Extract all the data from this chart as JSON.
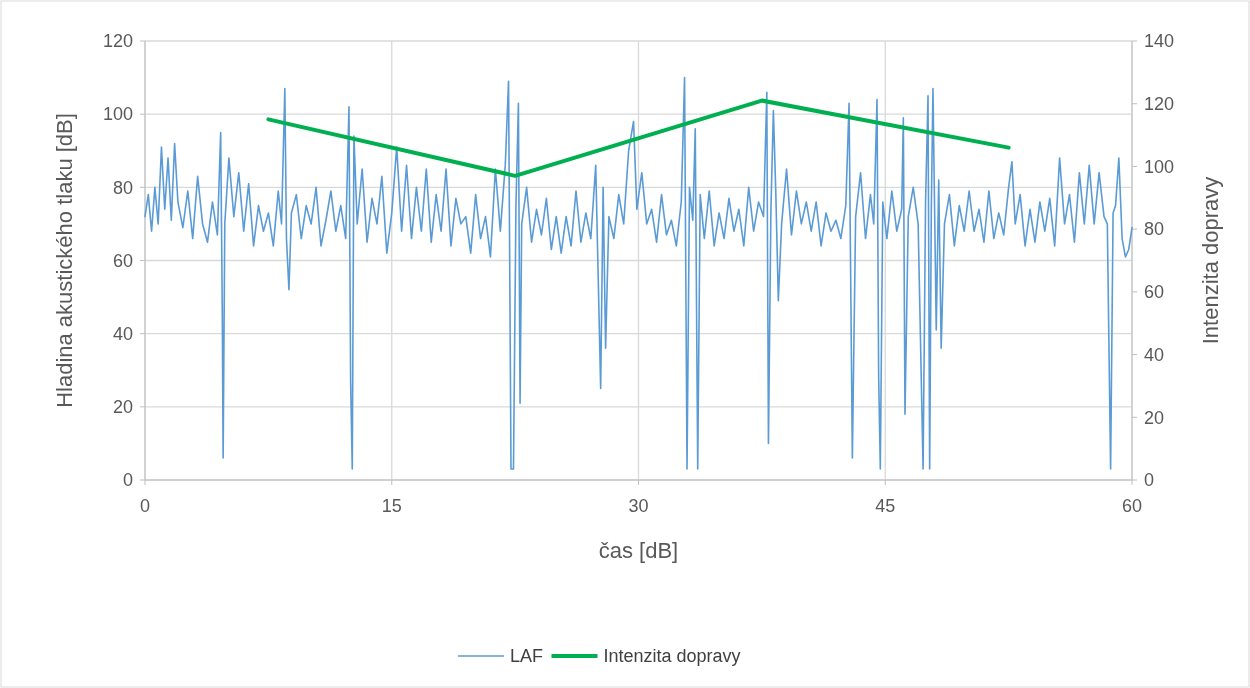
{
  "chart_data": {
    "type": "line",
    "xlabel": "čas [dB]",
    "ylabel": "Hladina akustického tlaku [dB]",
    "y2label": "Intenzita dopravy",
    "xlim": [
      0,
      60
    ],
    "xticks": [
      0,
      15,
      30,
      45,
      60
    ],
    "ylim": [
      0,
      120
    ],
    "yticks": [
      0,
      20,
      40,
      60,
      80,
      100,
      120
    ],
    "y2lim": [
      0,
      140
    ],
    "y2ticks": [
      0,
      20,
      40,
      60,
      80,
      100,
      120,
      140
    ],
    "grid": true,
    "legend": "bottom",
    "series": [
      {
        "name": "LAF",
        "color": "#5b9bd5",
        "x": [
          0,
          0.2,
          0.4,
          0.6,
          0.8,
          1.0,
          1.2,
          1.4,
          1.6,
          1.8,
          2.0,
          2.3,
          2.6,
          2.9,
          3.2,
          3.5,
          3.8,
          4.1,
          4.4,
          4.6,
          4.7,
          4.75,
          4.85,
          5.1,
          5.4,
          5.7,
          6.0,
          6.3,
          6.6,
          6.9,
          7.2,
          7.5,
          7.8,
          8.1,
          8.3,
          8.5,
          8.6,
          8.75,
          8.9,
          9.2,
          9.5,
          9.8,
          10.1,
          10.4,
          10.7,
          11.0,
          11.3,
          11.6,
          11.9,
          12.2,
          12.4,
          12.5,
          12.6,
          12.7,
          12.9,
          13.2,
          13.5,
          13.8,
          14.1,
          14.4,
          14.7,
          15.0,
          15.3,
          15.6,
          15.9,
          16.2,
          16.5,
          16.8,
          17.1,
          17.4,
          17.7,
          18.0,
          18.3,
          18.6,
          18.9,
          19.2,
          19.5,
          19.8,
          20.1,
          20.4,
          20.7,
          21.0,
          21.3,
          21.6,
          21.9,
          22.1,
          22.25,
          22.4,
          22.55,
          22.7,
          22.8,
          22.9,
          23.2,
          23.5,
          23.8,
          24.1,
          24.4,
          24.7,
          25.0,
          25.3,
          25.6,
          25.9,
          26.2,
          26.5,
          26.8,
          27.1,
          27.4,
          27.7,
          27.85,
          28.0,
          28.2,
          28.5,
          28.8,
          29.1,
          29.4,
          29.7,
          29.9,
          30.2,
          30.5,
          30.8,
          31.1,
          31.4,
          31.7,
          32.0,
          32.3,
          32.6,
          32.8,
          32.95,
          33.1,
          33.3,
          33.45,
          33.6,
          33.75,
          34.0,
          34.3,
          34.6,
          34.9,
          35.2,
          35.5,
          35.8,
          36.1,
          36.4,
          36.7,
          37.0,
          37.3,
          37.6,
          37.8,
          37.9,
          38.05,
          38.2,
          38.35,
          38.5,
          38.7,
          39.0,
          39.3,
          39.6,
          39.9,
          40.2,
          40.5,
          40.8,
          41.1,
          41.4,
          41.7,
          42.0,
          42.3,
          42.6,
          42.8,
          43.0,
          43.2,
          43.5,
          43.8,
          44.1,
          44.3,
          44.5,
          44.6,
          44.7,
          44.85,
          45.1,
          45.4,
          45.7,
          46.0,
          46.1,
          46.2,
          46.4,
          46.7,
          47.0,
          47.3,
          47.45,
          47.6,
          47.7,
          47.8,
          47.9,
          48.1,
          48.25,
          48.4,
          48.6,
          48.9,
          49.2,
          49.5,
          49.8,
          50.1,
          50.4,
          50.7,
          51.0,
          51.3,
          51.6,
          51.9,
          52.2,
          52.5,
          52.7,
          52.9,
          53.2,
          53.5,
          53.8,
          54.1,
          54.4,
          54.7,
          55.0,
          55.3,
          55.6,
          55.9,
          56.2,
          56.5,
          56.8,
          57.1,
          57.4,
          57.7,
          58.0,
          58.3,
          58.5,
          58.7,
          58.85,
          59.0,
          59.2,
          59.4,
          59.6,
          59.8,
          60.0
        ],
        "values": [
          72,
          78,
          68,
          80,
          70,
          91,
          74,
          88,
          71,
          92,
          76,
          69,
          79,
          66,
          83,
          70,
          65,
          76,
          67,
          95,
          45,
          6,
          70,
          88,
          72,
          84,
          68,
          81,
          64,
          75,
          68,
          73,
          64,
          79,
          70,
          107,
          66,
          52,
          73,
          78,
          66,
          75,
          70,
          80,
          64,
          71,
          79,
          68,
          75,
          66,
          102,
          27,
          3,
          94,
          70,
          85,
          65,
          77,
          70,
          83,
          62,
          73,
          91,
          68,
          86,
          66,
          80,
          68,
          85,
          65,
          78,
          68,
          85,
          64,
          77,
          70,
          72,
          62,
          78,
          66,
          72,
          61,
          85,
          68,
          86,
          109,
          3,
          3,
          75,
          103,
          21,
          70,
          80,
          65,
          74,
          67,
          77,
          63,
          72,
          62,
          72,
          64,
          79,
          65,
          73,
          66,
          86,
          25,
          80,
          36,
          72,
          66,
          78,
          70,
          90,
          98,
          74,
          84,
          70,
          74,
          65,
          78,
          67,
          71,
          64,
          76,
          110,
          3,
          80,
          71,
          96,
          3,
          78,
          66,
          79,
          64,
          73,
          66,
          77,
          68,
          74,
          64,
          80,
          68,
          76,
          72,
          106,
          10,
          74,
          101,
          78,
          49,
          70,
          85,
          67,
          79,
          70,
          76,
          68,
          76,
          64,
          73,
          68,
          71,
          66,
          75,
          103,
          6,
          72,
          84,
          66,
          78,
          70,
          104,
          28,
          3,
          76,
          66,
          79,
          68,
          74,
          99,
          18,
          72,
          80,
          70,
          3,
          76,
          105,
          3,
          74,
          107,
          41,
          82,
          36,
          70,
          78,
          64,
          75,
          68,
          79,
          68,
          74,
          65,
          79,
          66,
          73,
          67,
          80,
          87,
          70,
          78,
          64,
          74,
          65,
          76,
          68,
          77,
          64,
          88,
          70,
          78,
          65,
          84,
          70,
          86,
          70,
          84,
          72,
          70,
          3,
          73,
          75,
          88,
          66,
          61,
          63,
          69
        ]
      },
      {
        "name": "Intenzita dopravy",
        "color": "#00b050",
        "axis": "y2",
        "x": [
          7.5,
          22.5,
          37.5,
          52.5
        ],
        "values": [
          115,
          97,
          121,
          106
        ]
      }
    ]
  }
}
